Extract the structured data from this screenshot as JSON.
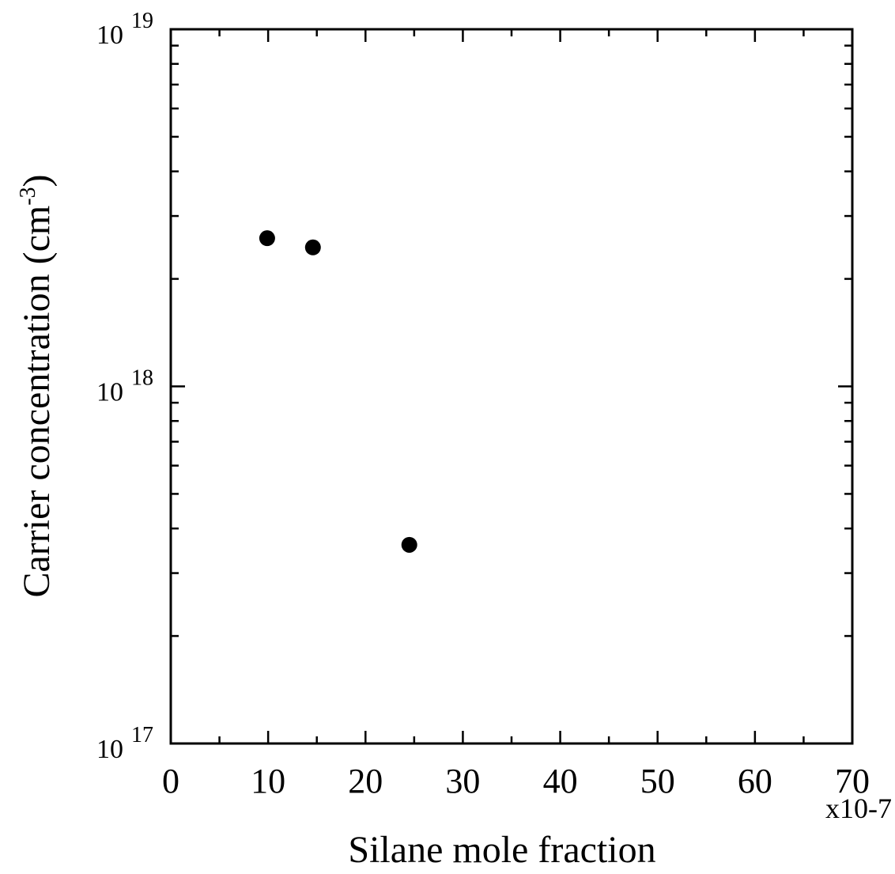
{
  "chart_data": {
    "type": "scatter",
    "xlabel": "Silane mole fraction",
    "ylabel_main": "Carrier concentration (cm",
    "ylabel_exp": "-3",
    "ylabel_close": ")",
    "x_multiplier_label": "x10-7",
    "xlim": [
      0,
      70
    ],
    "ylim": [
      1e+17,
      1e+19
    ],
    "yscale": "log",
    "grid": false,
    "x_ticks": [
      {
        "value": 0,
        "label": "0"
      },
      {
        "value": 10,
        "label": "10"
      },
      {
        "value": 20,
        "label": "20"
      },
      {
        "value": 30,
        "label": "30"
      },
      {
        "value": 40,
        "label": "40"
      },
      {
        "value": 50,
        "label": "50"
      },
      {
        "value": 60,
        "label": "60"
      },
      {
        "value": 70,
        "label": "70"
      }
    ],
    "y_ticks": [
      {
        "value": 1e+17,
        "base": "10",
        "exp": "17"
      },
      {
        "value": 1e+18,
        "base": "10",
        "exp": "18"
      },
      {
        "value": 1e+19,
        "base": "10",
        "exp": "19"
      }
    ],
    "points": [
      {
        "x": 9.9,
        "y": 2.6e+18
      },
      {
        "x": 14.6,
        "y": 2.45e+18
      },
      {
        "x": 24.5,
        "y": 3.6e+17
      }
    ]
  }
}
